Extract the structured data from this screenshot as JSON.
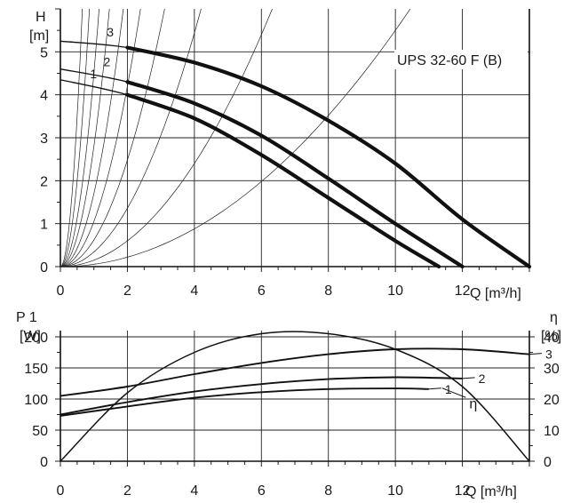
{
  "chart_data": [
    {
      "type": "line",
      "title": "UPS 32-60  F (B)",
      "ylabel_symbol": "H",
      "ylabel_unit": "[m]",
      "xlabel": "Q [m³/h]",
      "xlim": [
        0,
        14
      ],
      "ylim": [
        0,
        6
      ],
      "xticks": [
        "0",
        "2",
        "4",
        "6",
        "8",
        "10",
        "12"
      ],
      "yticks": [
        "0",
        "1",
        "2",
        "3",
        "4",
        "5"
      ],
      "grid": true,
      "series": [
        {
          "name": "1",
          "x": [
            0,
            2,
            4,
            6,
            8,
            10,
            11.3
          ],
          "y": [
            4.35,
            4.0,
            3.45,
            2.6,
            1.6,
            0.6,
            0
          ]
        },
        {
          "name": "2",
          "x": [
            0,
            2,
            4,
            6,
            8,
            10,
            12
          ],
          "y": [
            4.6,
            4.3,
            3.8,
            3.05,
            2.05,
            1.0,
            0
          ]
        },
        {
          "name": "3",
          "x": [
            0,
            2,
            4,
            6,
            8,
            10,
            12,
            14
          ],
          "y": [
            5.25,
            5.1,
            4.75,
            4.2,
            3.4,
            2.4,
            1.1,
            0
          ]
        }
      ],
      "system_curves_coef": [
        14,
        8,
        4.5,
        2.8,
        1.7,
        1.05,
        0.62,
        0.34,
        0.15,
        0.055
      ],
      "system_curves_note": "parabolic system curves H = k·Q² (coefficients k)"
    },
    {
      "type": "line",
      "ylabel_symbol": "P 1",
      "ylabel_unit": "[W]",
      "y2label_symbol": "η",
      "y2label_unit": "[%]",
      "xlabel": "Q [m³/h]",
      "xlim": [
        0,
        14
      ],
      "ylim": [
        0,
        210
      ],
      "y2lim": [
        0,
        42
      ],
      "xticks": [
        "0",
        "2",
        "4",
        "6",
        "8",
        "10",
        "12"
      ],
      "yticks": [
        "0",
        "50",
        "100",
        "150",
        "200"
      ],
      "y2ticks": [
        "0",
        "10",
        "20",
        "30",
        "40"
      ],
      "grid": true,
      "series": [
        {
          "name": "1",
          "x": [
            0,
            2,
            4,
            6,
            8,
            10,
            11
          ],
          "y": [
            73,
            88,
            102,
            111,
            116,
            117,
            116
          ]
        },
        {
          "name": "2",
          "x": [
            0,
            2,
            4,
            6,
            8,
            10,
            12
          ],
          "y": [
            75,
            95,
            112,
            124,
            132,
            135,
            133
          ]
        },
        {
          "name": "3",
          "x": [
            0,
            2,
            4,
            6,
            8,
            10,
            12,
            14
          ],
          "y": [
            105,
            120,
            140,
            158,
            172,
            180,
            180,
            172
          ]
        },
        {
          "name": "η",
          "axis": "right",
          "x": [
            0,
            2,
            4,
            6,
            8,
            10,
            12,
            14
          ],
          "y": [
            0,
            22,
            35,
            41,
            41,
            36,
            24,
            0
          ]
        }
      ]
    }
  ]
}
